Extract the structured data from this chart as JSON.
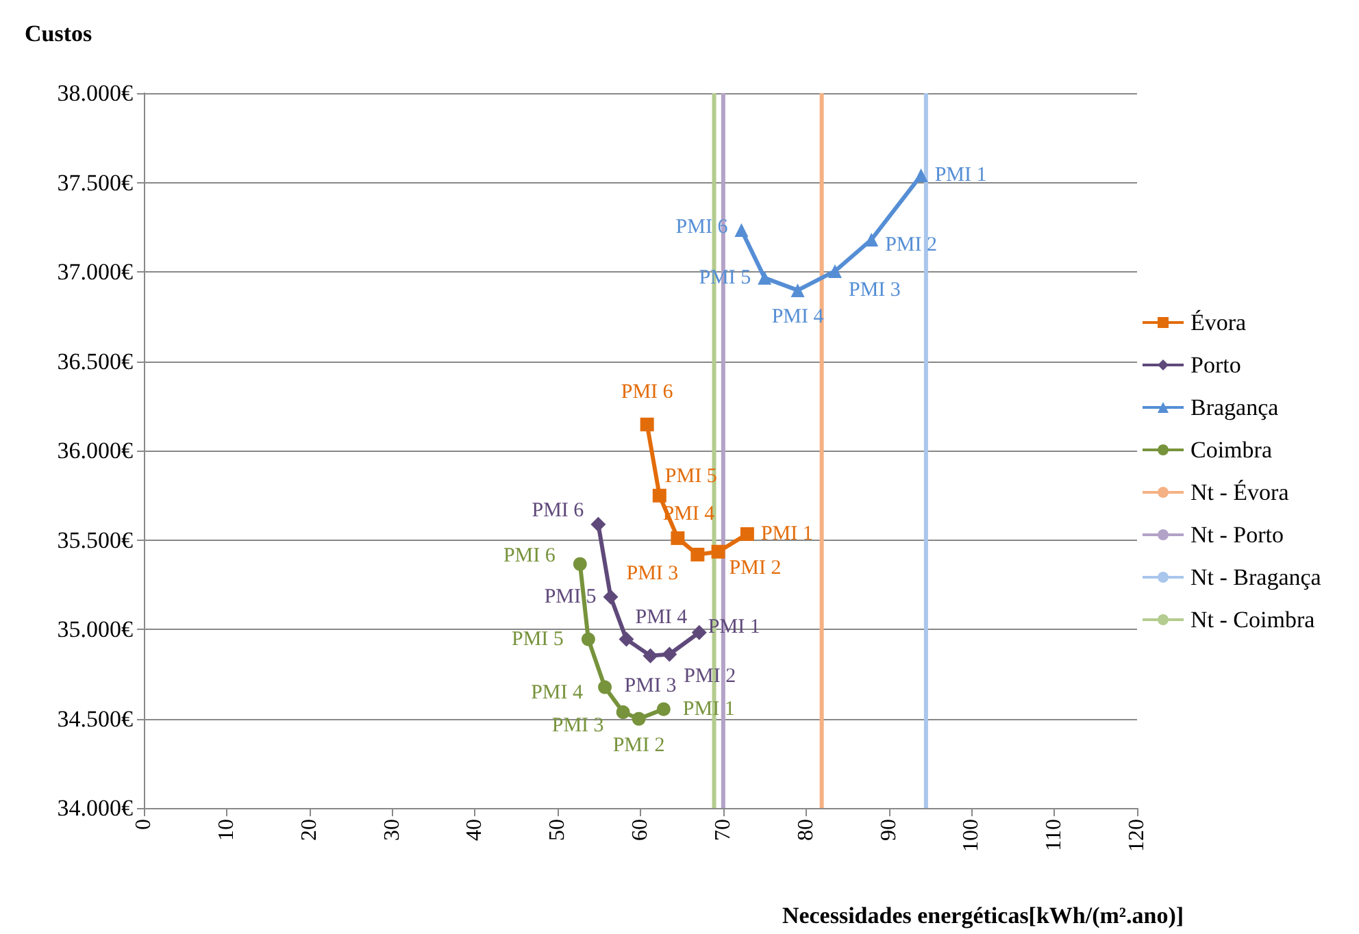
{
  "chart_data": {
    "type": "line",
    "xlabel": "Necessidades energéticas[kWh/(m².ano)]",
    "ylabel": "Custos",
    "legend": "right",
    "grid": "y",
    "xlim": [
      0,
      120
    ],
    "xticks": [
      0,
      10,
      20,
      30,
      40,
      50,
      60,
      70,
      80,
      90,
      100,
      110,
      120
    ],
    "ylim": [
      34000,
      38000
    ],
    "yticks": [
      {
        "value": 34000,
        "label": "34.000€"
      },
      {
        "value": 34500,
        "label": "34.500€"
      },
      {
        "value": 35000,
        "label": "35.000€"
      },
      {
        "value": 35500,
        "label": "35.500€"
      },
      {
        "value": 36000,
        "label": "36.000€"
      },
      {
        "value": 36500,
        "label": "36.500€"
      },
      {
        "value": 37000,
        "label": "37.000€"
      },
      {
        "value": 37500,
        "label": "37.500€"
      },
      {
        "value": 38000,
        "label": "38.000€"
      }
    ],
    "series": [
      {
        "name": "Évora",
        "color": "#e36c0a",
        "marker": "square",
        "x": [
          72.9,
          69.4,
          66.9,
          64.5,
          62.3,
          60.8
        ],
        "values": [
          35533,
          35434,
          35418,
          35510,
          35748,
          36146
        ],
        "value_labels": [
          "PMI 1",
          "PMI 2",
          "PMI 3",
          "PMI 4",
          "PMI 5",
          "PMI 6"
        ]
      },
      {
        "name": "Porto",
        "color": "#5f497a",
        "marker": "diamond",
        "x": [
          67.1,
          63.5,
          61.2,
          58.3,
          56.4,
          54.9
        ],
        "values": [
          34982,
          34860,
          34852,
          34944,
          35181,
          35587
        ],
        "value_labels": [
          "PMI 1",
          "PMI 2",
          "PMI 3",
          "PMI 4",
          "PMI 5",
          "PMI 6"
        ]
      },
      {
        "name": "Bragança",
        "color": "#558ed5",
        "marker": "triangle",
        "x": [
          93.9,
          87.9,
          83.5,
          79.0,
          75.0,
          72.2
        ],
        "values": [
          37540,
          37180,
          37004,
          36897,
          36966,
          37234
        ],
        "value_labels": [
          "PMI 1",
          "PMI 2",
          "PMI 3",
          "PMI 4",
          "PMI 5",
          "PMI 6"
        ]
      },
      {
        "name": "Coimbra",
        "color": "#77933c",
        "marker": "circle",
        "x": [
          62.8,
          59.8,
          57.9,
          55.7,
          53.7,
          52.7
        ],
        "values": [
          34553,
          34499,
          34536,
          34676,
          34944,
          35365
        ],
        "value_labels": [
          "PMI 1",
          "PMI 2",
          "PMI 3",
          "PMI 4",
          "PMI 5",
          "PMI 6"
        ]
      },
      {
        "name": "Nt - Évora",
        "color": "#f5b183",
        "marker": "none",
        "x": [
          81.9,
          81.9
        ],
        "values": [
          34000,
          38000
        ]
      },
      {
        "name": "Nt - Porto",
        "color": "#b3a2c7",
        "marker": "none",
        "x": [
          70.0,
          70.0
        ],
        "values": [
          34000,
          38000
        ]
      },
      {
        "name": "Nt - Bragança",
        "color": "#a9c6ec",
        "marker": "none",
        "x": [
          94.5,
          94.5
        ],
        "values": [
          34000,
          38000
        ]
      },
      {
        "name": "Nt - Coimbra",
        "color": "#b4cc8f",
        "marker": "none",
        "x": [
          68.9,
          68.9
        ],
        "values": [
          34000,
          38000
        ]
      }
    ]
  }
}
